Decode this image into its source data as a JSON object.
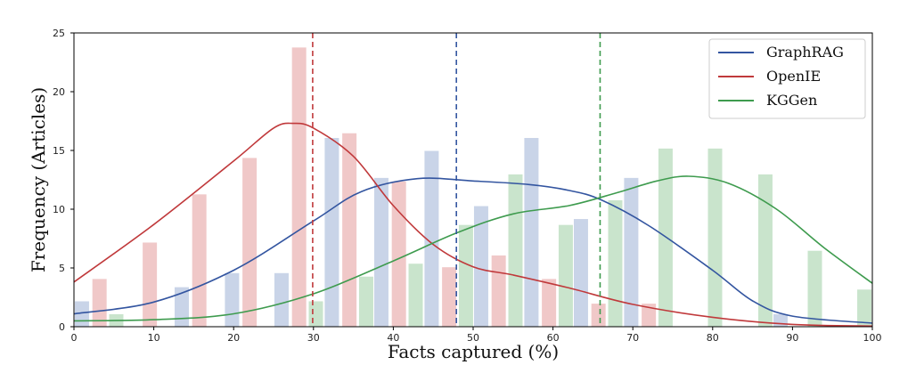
{
  "chart_data": {
    "type": "bar",
    "title": "",
    "xlabel": "Facts captured (%)",
    "ylabel": "Frequency (Articles)",
    "xlim": [
      0,
      100
    ],
    "ylim": [
      0,
      25
    ],
    "xticks": [
      0,
      10,
      20,
      30,
      40,
      50,
      60,
      70,
      80,
      90,
      100
    ],
    "yticks": [
      0,
      5,
      10,
      15,
      20,
      25
    ],
    "grid": false,
    "legend_position": "top-right",
    "series": [
      {
        "name": "GraphRAG",
        "color": "#3355a0",
        "bar_color": "#c9d4e8",
        "bars": [
          {
            "x": 1,
            "y": 2.2
          },
          {
            "x": 13.5,
            "y": 3.4
          },
          {
            "x": 19.8,
            "y": 4.6
          },
          {
            "x": 26,
            "y": 4.6
          },
          {
            "x": 32.3,
            "y": 16.1
          },
          {
            "x": 38.5,
            "y": 12.7
          },
          {
            "x": 44.8,
            "y": 15.0
          },
          {
            "x": 51,
            "y": 10.3
          },
          {
            "x": 57.3,
            "y": 16.1
          },
          {
            "x": 63.5,
            "y": 9.2
          },
          {
            "x": 69.8,
            "y": 12.7
          },
          {
            "x": 88.5,
            "y": 1.1
          }
        ],
        "kde": [
          [
            0,
            1.1
          ],
          [
            10,
            2.1
          ],
          [
            20,
            4.8
          ],
          [
            30,
            9.0
          ],
          [
            36,
            11.5
          ],
          [
            43,
            12.6
          ],
          [
            50,
            12.4
          ],
          [
            57,
            12.1
          ],
          [
            62,
            11.6
          ],
          [
            66,
            10.8
          ],
          [
            72,
            8.6
          ],
          [
            80,
            4.8
          ],
          [
            85,
            2.2
          ],
          [
            90,
            0.9
          ],
          [
            100,
            0.3
          ]
        ],
        "mean_line": 47.9
      },
      {
        "name": "OpenIE",
        "color": "#c0393b",
        "bar_color": "#f0c8c8",
        "bars": [
          {
            "x": 3.2,
            "y": 4.1
          },
          {
            "x": 9.5,
            "y": 7.2
          },
          {
            "x": 15.7,
            "y": 11.3
          },
          {
            "x": 22,
            "y": 14.4
          },
          {
            "x": 28.2,
            "y": 23.8
          },
          {
            "x": 34.5,
            "y": 16.5
          },
          {
            "x": 40.7,
            "y": 12.4
          },
          {
            "x": 47,
            "y": 5.1
          },
          {
            "x": 53.2,
            "y": 6.1
          },
          {
            "x": 59.5,
            "y": 4.1
          },
          {
            "x": 65.7,
            "y": 2.0
          },
          {
            "x": 72,
            "y": 2.0
          }
        ],
        "kde": [
          [
            0,
            3.8
          ],
          [
            10,
            8.7
          ],
          [
            20,
            14.1
          ],
          [
            25,
            16.9
          ],
          [
            27.5,
            17.3
          ],
          [
            30,
            16.9
          ],
          [
            35,
            14.5
          ],
          [
            40,
            10.3
          ],
          [
            45,
            7.0
          ],
          [
            50,
            5.1
          ],
          [
            55,
            4.4
          ],
          [
            62,
            3.3
          ],
          [
            70,
            1.9
          ],
          [
            80,
            0.8
          ],
          [
            90,
            0.2
          ],
          [
            100,
            0.05
          ]
        ],
        "mean_line": 29.9
      },
      {
        "name": "KGGen",
        "color": "#3e9b4e",
        "bar_color": "#c9e4cc",
        "bars": [
          {
            "x": 5.3,
            "y": 1.1
          },
          {
            "x": 30.3,
            "y": 2.2
          },
          {
            "x": 36.6,
            "y": 4.3
          },
          {
            "x": 42.8,
            "y": 5.4
          },
          {
            "x": 49.1,
            "y": 8.7
          },
          {
            "x": 55.3,
            "y": 13.0
          },
          {
            "x": 61.6,
            "y": 8.7
          },
          {
            "x": 67.8,
            "y": 10.8
          },
          {
            "x": 74.1,
            "y": 15.2
          },
          {
            "x": 80.3,
            "y": 15.2
          },
          {
            "x": 86.6,
            "y": 13.0
          },
          {
            "x": 92.8,
            "y": 6.5
          },
          {
            "x": 99,
            "y": 3.2
          }
        ],
        "kde": [
          [
            0,
            0.5
          ],
          [
            10,
            0.6
          ],
          [
            20,
            1.1
          ],
          [
            30,
            2.8
          ],
          [
            40,
            5.6
          ],
          [
            48,
            8.0
          ],
          [
            55,
            9.6
          ],
          [
            62,
            10.3
          ],
          [
            68,
            11.4
          ],
          [
            73,
            12.4
          ],
          [
            77,
            12.8
          ],
          [
            82,
            12.2
          ],
          [
            88,
            10.0
          ],
          [
            94,
            6.7
          ],
          [
            100,
            3.7
          ]
        ],
        "mean_line": 65.9
      }
    ]
  }
}
